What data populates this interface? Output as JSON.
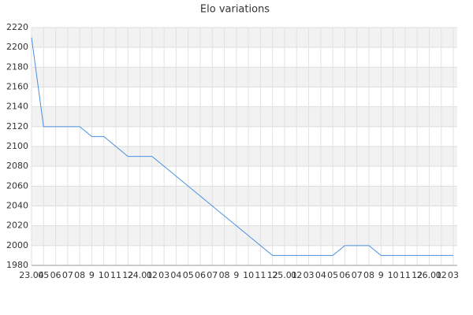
{
  "chart_data": {
    "type": "line",
    "title": "Elo variations",
    "categories": [
      "23.04",
      "05",
      "06",
      "07",
      "08",
      "9",
      "10",
      "11",
      "12",
      "24.01",
      "02",
      "03",
      "04",
      "05",
      "06",
      "07",
      "08",
      "9",
      "10",
      "11",
      "12",
      "25.01",
      "02",
      "03",
      "04",
      "05",
      "06",
      "07",
      "08",
      "9",
      "10",
      "11",
      "12",
      "26.01",
      "02",
      "03"
    ],
    "series": [
      {
        "color": "#4a8fe0",
        "values": [
          2210,
          2120,
          2120,
          2120,
          2120,
          2110,
          2110,
          2100,
          2090,
          2090,
          2090,
          2080,
          2070,
          2060,
          2050,
          2040,
          2030,
          2020,
          2010,
          2000,
          1990,
          1990,
          1990,
          1990,
          1990,
          1990,
          2000,
          2000,
          2000,
          1990,
          1990,
          1990,
          1990,
          1990,
          1990,
          1990
        ]
      }
    ],
    "ylim": [
      1980,
      2220
    ],
    "yticks": [
      1980,
      2000,
      2020,
      2040,
      2060,
      2080,
      2100,
      2120,
      2140,
      2160,
      2180,
      2200,
      2220
    ],
    "grid": true,
    "band_color": "#f2f2f2"
  }
}
